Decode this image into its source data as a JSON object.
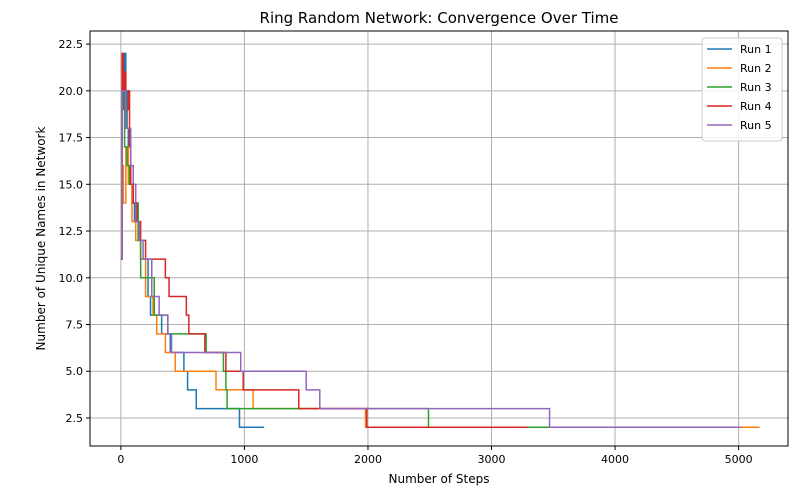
{
  "chart_data": {
    "type": "line",
    "title": "Ring Random Network: Convergence Over Time",
    "xlabel": "Number of Steps",
    "ylabel": "Number of Unique Names in Network",
    "xlim": [
      -250,
      5400
    ],
    "ylim": [
      1.0,
      23.2
    ],
    "xticks": [
      0,
      1000,
      2000,
      3000,
      4000,
      5000
    ],
    "yticks": [
      2.5,
      5.0,
      7.5,
      10.0,
      12.5,
      15.0,
      17.5,
      20.0,
      22.5
    ],
    "xtick_labels": [
      "0",
      "1000",
      "2000",
      "3000",
      "4000",
      "5000"
    ],
    "ytick_labels": [
      "2.5",
      "5.0",
      "7.5",
      "10.0",
      "12.5",
      "15.0",
      "17.5",
      "20.0",
      "22.5"
    ],
    "grid": true,
    "legend_position": "top-right",
    "line_style": "step",
    "series": [
      {
        "name": "Run 1",
        "color": "#1f77b4",
        "points": [
          [
            0,
            11
          ],
          [
            10,
            19
          ],
          [
            20,
            21
          ],
          [
            30,
            22
          ],
          [
            40,
            20
          ],
          [
            50,
            18
          ],
          [
            60,
            16
          ],
          [
            70,
            15
          ],
          [
            90,
            14
          ],
          [
            110,
            13
          ],
          [
            140,
            12
          ],
          [
            160,
            11
          ],
          [
            220,
            9
          ],
          [
            240,
            8
          ],
          [
            330,
            7
          ],
          [
            400,
            6
          ],
          [
            510,
            5
          ],
          [
            540,
            4
          ],
          [
            610,
            3
          ],
          [
            960,
            2
          ],
          [
            1160,
            2
          ]
        ]
      },
      {
        "name": "Run 2",
        "color": "#ff7f0e",
        "points": [
          [
            0,
            11
          ],
          [
            10,
            16
          ],
          [
            20,
            14
          ],
          [
            40,
            17
          ],
          [
            60,
            15
          ],
          [
            90,
            13
          ],
          [
            120,
            12
          ],
          [
            160,
            11
          ],
          [
            200,
            9
          ],
          [
            260,
            8
          ],
          [
            290,
            7
          ],
          [
            360,
            6
          ],
          [
            440,
            5
          ],
          [
            770,
            4
          ],
          [
            1070,
            3
          ],
          [
            1980,
            2
          ],
          [
            3300,
            2
          ],
          [
            3480,
            2
          ],
          [
            5170,
            2
          ]
        ]
      },
      {
        "name": "Run 3",
        "color": "#2ca02c",
        "points": [
          [
            0,
            11
          ],
          [
            10,
            20
          ],
          [
            30,
            17
          ],
          [
            50,
            16
          ],
          [
            70,
            15
          ],
          [
            100,
            14
          ],
          [
            140,
            12
          ],
          [
            160,
            10
          ],
          [
            270,
            8
          ],
          [
            380,
            7
          ],
          [
            690,
            6
          ],
          [
            830,
            5
          ],
          [
            850,
            4
          ],
          [
            860,
            3
          ],
          [
            2480,
            3
          ],
          [
            2490,
            2
          ],
          [
            3470,
            2
          ]
        ]
      },
      {
        "name": "Run 4",
        "color": "#d62728",
        "points": [
          [
            0,
            11
          ],
          [
            10,
            22
          ],
          [
            20,
            20
          ],
          [
            30,
            21
          ],
          [
            40,
            19
          ],
          [
            60,
            20
          ],
          [
            70,
            17
          ],
          [
            80,
            15
          ],
          [
            100,
            14
          ],
          [
            130,
            13
          ],
          [
            160,
            12
          ],
          [
            200,
            11
          ],
          [
            360,
            10
          ],
          [
            390,
            9
          ],
          [
            530,
            8
          ],
          [
            550,
            7
          ],
          [
            680,
            6
          ],
          [
            850,
            5
          ],
          [
            990,
            4
          ],
          [
            1440,
            3
          ],
          [
            1990,
            2
          ],
          [
            3290,
            2
          ]
        ]
      },
      {
        "name": "Run 5",
        "color": "#9467bd",
        "points": [
          [
            0,
            11
          ],
          [
            10,
            20
          ],
          [
            40,
            18
          ],
          [
            80,
            16
          ],
          [
            100,
            15
          ],
          [
            120,
            13
          ],
          [
            150,
            12
          ],
          [
            180,
            11
          ],
          [
            250,
            9
          ],
          [
            310,
            8
          ],
          [
            380,
            7
          ],
          [
            410,
            6
          ],
          [
            970,
            5
          ],
          [
            1500,
            4
          ],
          [
            1610,
            3
          ],
          [
            3470,
            2
          ],
          [
            5020,
            2
          ]
        ]
      }
    ]
  }
}
